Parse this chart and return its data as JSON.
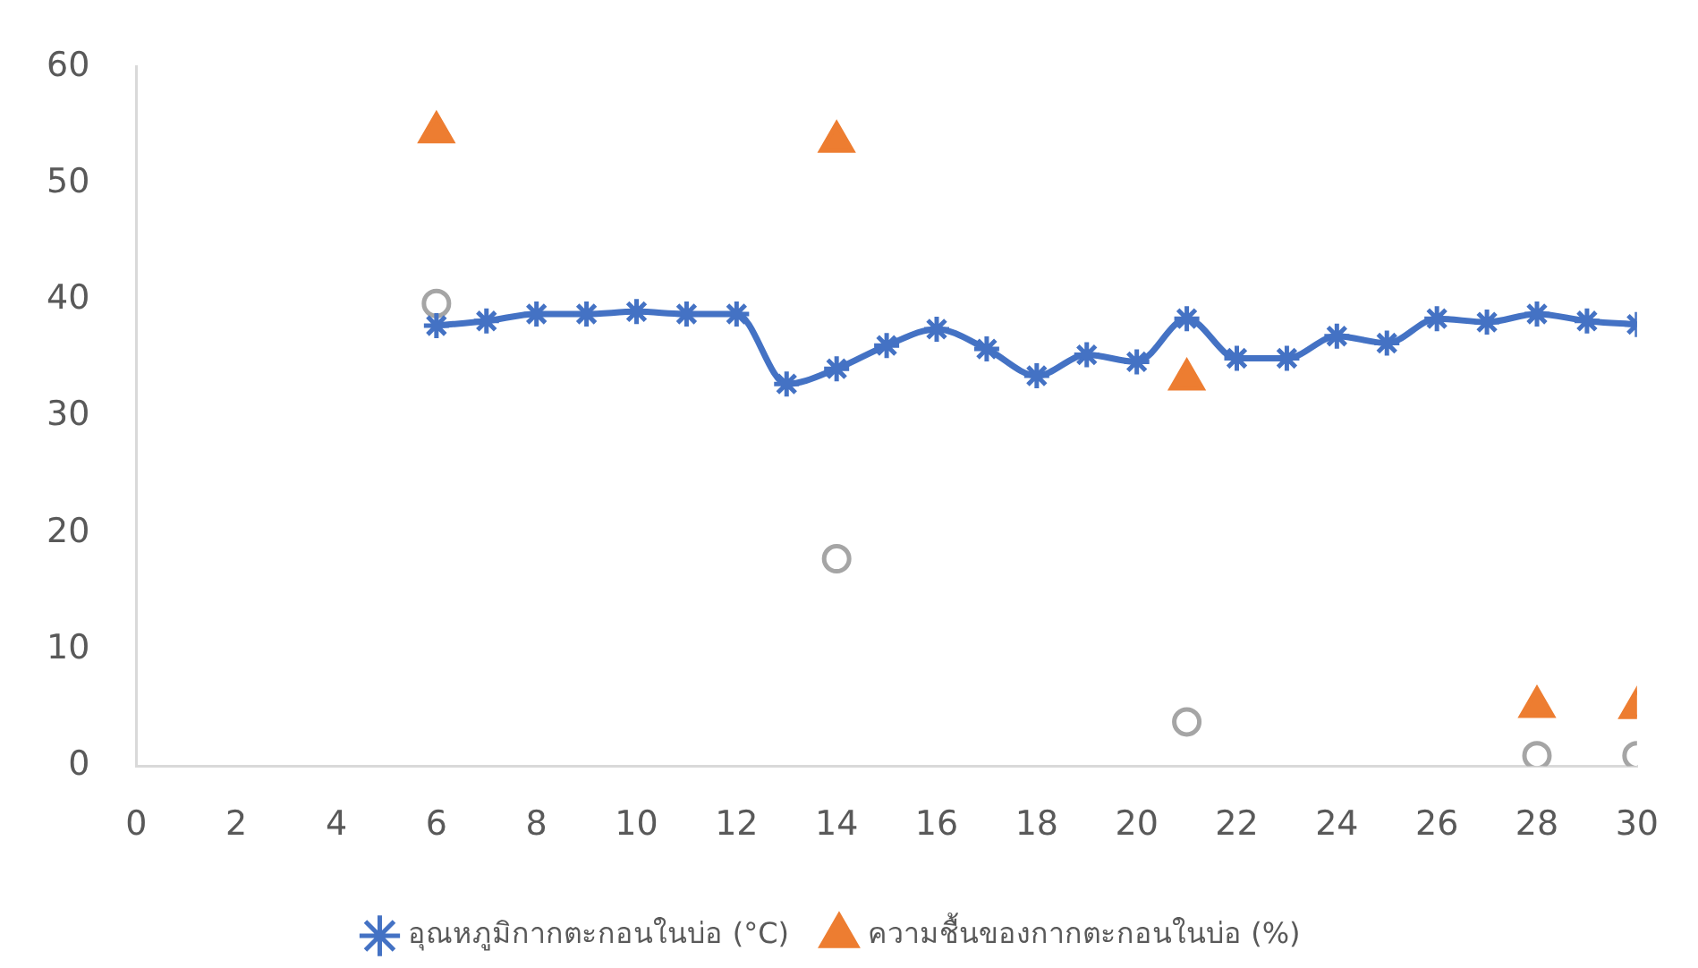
{
  "chart_data": {
    "type": "line",
    "x": [
      6,
      7,
      8,
      9,
      10,
      11,
      12,
      13,
      14,
      15,
      16,
      17,
      18,
      19,
      20,
      21,
      22,
      23,
      24,
      25,
      26,
      27,
      28,
      29,
      30
    ],
    "series": [
      {
        "name": "อุณหภูมิกากตะกอนในบ่อ (°C)",
        "color": "#4472c4",
        "marker": "cross",
        "values": [
          37.8,
          38.2,
          38.8,
          38.8,
          39.0,
          38.8,
          38.8,
          32.8,
          34.1,
          36.1,
          37.5,
          35.8,
          33.5,
          35.3,
          34.7,
          38.4,
          35.0,
          35.0,
          36.9,
          36.3,
          38.4,
          38.1,
          38.8,
          38.2,
          37.9
        ]
      },
      {
        "name": "ความชื้นของกากตะกอนในบ่อ (%)",
        "type": "scatter",
        "color": "#ed7d31",
        "marker": "triangle",
        "x": [
          6,
          14,
          21,
          28,
          30
        ],
        "values": [
          54.4,
          53.6,
          33.2,
          5.1,
          5.0
        ]
      },
      {
        "type": "scatter",
        "color": "#a5a5a5",
        "marker": "circle",
        "x": [
          6,
          14,
          21,
          28,
          30
        ],
        "values": [
          39.7,
          17.8,
          3.8,
          0.9,
          0.9
        ]
      }
    ],
    "xlim": [
      0,
      30
    ],
    "xticks": [
      0,
      2,
      4,
      6,
      8,
      10,
      12,
      14,
      16,
      18,
      20,
      22,
      24,
      26,
      28,
      30
    ],
    "ylim": [
      0,
      60
    ],
    "yticks": [
      0,
      10,
      20,
      30,
      40,
      50,
      60
    ],
    "grid": false,
    "legend": "bottom"
  }
}
